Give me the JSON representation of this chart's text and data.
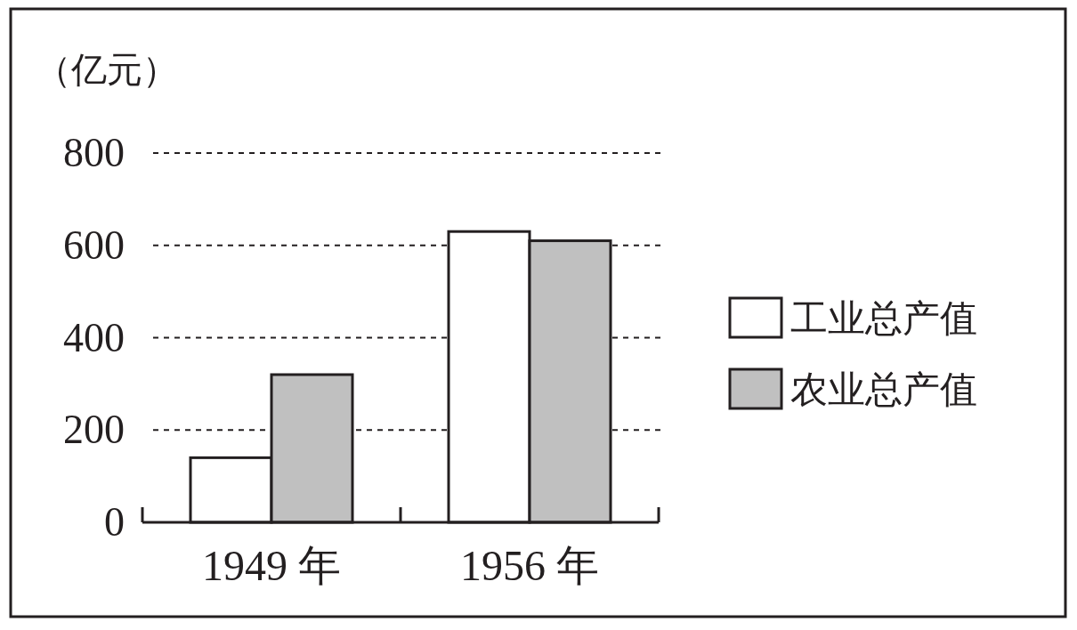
{
  "chart_data": {
    "type": "bar",
    "ylabel": "（亿元）",
    "categories": [
      "1949 年",
      "1956 年"
    ],
    "series": [
      {
        "name": "工业总产值",
        "color": "#ffffff",
        "values": [
          140,
          630
        ]
      },
      {
        "name": "农业总产值",
        "color": "#c0c0c0",
        "values": [
          320,
          610
        ]
      }
    ],
    "ylim": [
      0,
      800
    ],
    "yticks": [
      0,
      200,
      400,
      600,
      800
    ],
    "grid": "y",
    "legend": "right"
  }
}
